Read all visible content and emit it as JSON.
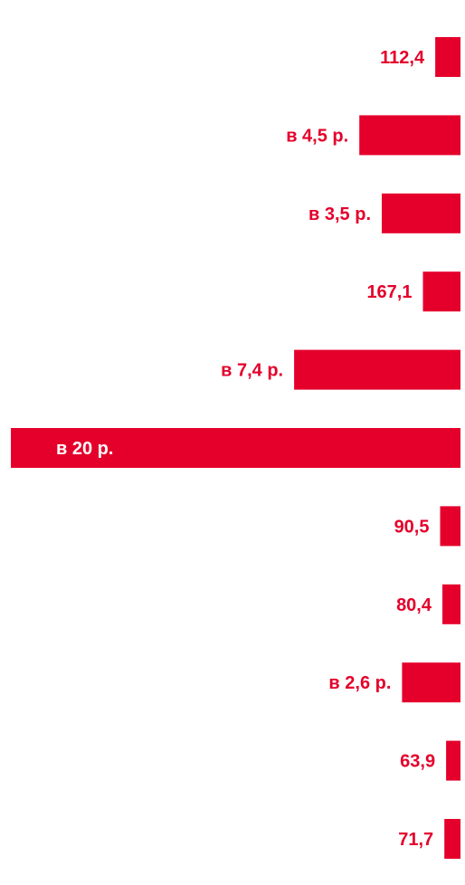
{
  "chart_data": {
    "type": "bar",
    "orientation": "horizontal",
    "bar_direction": "leftward",
    "bar_color": "#e4002b",
    "label_color_outside": "#e4002b",
    "label_color_inside": "#ffffff",
    "values": [
      112.4,
      450,
      350,
      167.1,
      740,
      2000,
      90.5,
      80.4,
      260,
      63.9,
      71.7
    ],
    "labels": [
      "112,4",
      "в 4,5 р.",
      "в 3,5 р.",
      "167,1",
      "в 7,4 р.",
      "в 20 р.",
      "90,5",
      "80,4",
      "в 2,6 р.",
      "63,9",
      "71,7"
    ],
    "title": "",
    "xlabel": "",
    "ylabel": "",
    "grid": false,
    "legend": "none"
  }
}
